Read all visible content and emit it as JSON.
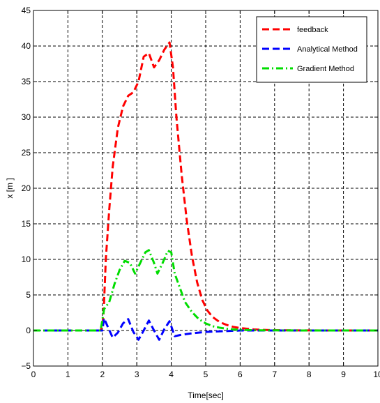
{
  "chart_data": {
    "type": "line",
    "title": "",
    "xlabel": "Time[sec]",
    "ylabel": "x [m ]",
    "xlim": [
      0,
      10
    ],
    "ylim": [
      -5,
      45
    ],
    "xticks": [
      0,
      1,
      2,
      3,
      4,
      5,
      6,
      7,
      8,
      9,
      10
    ],
    "yticks": [
      -5,
      0,
      5,
      10,
      15,
      20,
      25,
      30,
      35,
      40,
      45
    ],
    "grid": true,
    "legend_position": "top-right",
    "series": [
      {
        "name": "feedback",
        "color": "#ff0000",
        "style": "dashed",
        "x": [
          0,
          1.0,
          1.95,
          2.02,
          2.05,
          2.1,
          2.2,
          2.3,
          2.45,
          2.6,
          2.75,
          2.9,
          3.05,
          3.2,
          3.35,
          3.5,
          3.65,
          3.8,
          3.95,
          4.05,
          4.15,
          4.3,
          4.45,
          4.6,
          4.75,
          4.9,
          5.05,
          5.2,
          5.4,
          5.6,
          5.8,
          6.0,
          6.2,
          6.4,
          6.7,
          7.0,
          7.5,
          8.0,
          9.0,
          10.0
        ],
        "y": [
          0,
          0,
          0,
          1.0,
          4.0,
          10.0,
          17.0,
          23.0,
          28.5,
          31.5,
          33.0,
          33.5,
          35.0,
          38.5,
          39.0,
          37.0,
          38.0,
          39.5,
          40.5,
          37.0,
          30.0,
          22.0,
          15.5,
          10.5,
          6.8,
          4.3,
          2.8,
          1.9,
          1.2,
          0.8,
          0.5,
          0.35,
          0.25,
          0.15,
          0.08,
          0.04,
          0.02,
          0.01,
          0,
          0
        ]
      },
      {
        "name": "Analytical Method",
        "color": "#0000ff",
        "style": "dashed",
        "x": [
          0,
          1.0,
          2.0,
          2.05,
          2.15,
          2.3,
          2.45,
          2.6,
          2.75,
          2.9,
          3.05,
          3.2,
          3.35,
          3.5,
          3.65,
          3.8,
          3.95,
          4.1,
          4.3,
          4.6,
          5.0,
          5.5,
          6.0,
          7.0,
          8.0,
          9.0,
          10.0
        ],
        "y": [
          0,
          0,
          0,
          1.7,
          0.6,
          -1.0,
          -0.3,
          1.0,
          1.6,
          -0.2,
          -1.3,
          0.0,
          1.4,
          0.0,
          -1.3,
          0.2,
          1.3,
          -0.8,
          -0.6,
          -0.4,
          -0.2,
          -0.1,
          0,
          0,
          0,
          0,
          0
        ]
      },
      {
        "name": "Gradient Method",
        "color": "#00dd00",
        "style": "dashdot",
        "x": [
          0,
          1.0,
          1.95,
          2.05,
          2.2,
          2.35,
          2.5,
          2.65,
          2.8,
          2.95,
          3.1,
          3.25,
          3.35,
          3.5,
          3.6,
          3.75,
          3.9,
          4.0,
          4.1,
          4.25,
          4.4,
          4.6,
          4.8,
          5.0,
          5.2,
          5.4,
          5.6,
          5.8,
          6.0,
          6.3,
          6.6,
          7.0,
          7.5,
          8.0,
          9.0,
          10.0
        ],
        "y": [
          0,
          0,
          0,
          3.0,
          4.0,
          6.5,
          8.5,
          9.8,
          9.5,
          8.0,
          9.5,
          11.0,
          11.3,
          9.5,
          8.0,
          9.5,
          11.2,
          11.0,
          8.0,
          6.0,
          4.0,
          2.6,
          1.6,
          1.0,
          0.6,
          0.4,
          0.25,
          0.15,
          0.1,
          0.05,
          0.03,
          0.02,
          0.01,
          0,
          0,
          0
        ]
      }
    ]
  }
}
